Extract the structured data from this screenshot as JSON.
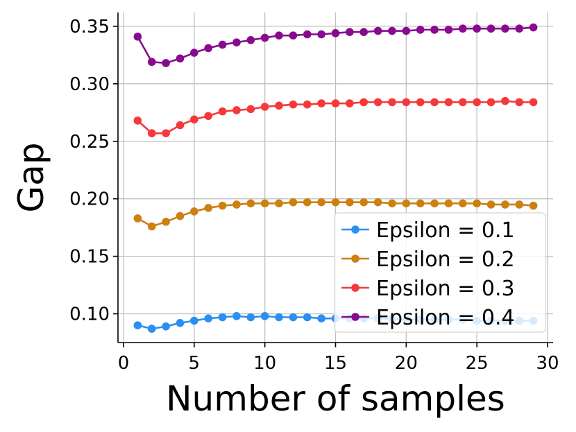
{
  "chart_data": {
    "type": "line",
    "title": "",
    "xlabel": "Number of samples",
    "ylabel": "Gap",
    "xlim": [
      0,
      30
    ],
    "ylim": [
      0.075,
      0.362
    ],
    "xticks": [
      0,
      5,
      10,
      15,
      20,
      25,
      30
    ],
    "yticks": [
      0.1,
      0.15,
      0.2,
      0.25,
      0.3,
      0.35
    ],
    "ytick_labels": [
      "0.10",
      "0.15",
      "0.20",
      "0.25",
      "0.30",
      "0.35"
    ],
    "grid": true,
    "legend_position": "lower-right",
    "x": [
      1,
      2,
      3,
      4,
      5,
      6,
      7,
      8,
      9,
      10,
      11,
      12,
      13,
      14,
      15,
      16,
      17,
      18,
      19,
      20,
      21,
      22,
      23,
      24,
      25,
      26,
      27,
      28,
      29
    ],
    "series": [
      {
        "name": "Epsilon = 0.1",
        "color": "#2a8ff0",
        "values": [
          0.09,
          0.087,
          0.089,
          0.092,
          0.094,
          0.096,
          0.097,
          0.098,
          0.097,
          0.098,
          0.097,
          0.097,
          0.097,
          0.096,
          0.096,
          0.096,
          0.096,
          0.096,
          0.095,
          0.095,
          0.095,
          0.095,
          0.095,
          0.095,
          0.094,
          0.094,
          0.094,
          0.094,
          0.094
        ]
      },
      {
        "name": "Epsilon = 0.2",
        "color": "#cc8010",
        "values": [
          0.183,
          0.176,
          0.18,
          0.185,
          0.189,
          0.192,
          0.194,
          0.195,
          0.196,
          0.196,
          0.196,
          0.197,
          0.197,
          0.197,
          0.197,
          0.197,
          0.197,
          0.197,
          0.196,
          0.196,
          0.196,
          0.196,
          0.196,
          0.196,
          0.196,
          0.195,
          0.195,
          0.195,
          0.194
        ]
      },
      {
        "name": "Epsilon = 0.3",
        "color": "#f5383a",
        "values": [
          0.268,
          0.257,
          0.257,
          0.264,
          0.269,
          0.272,
          0.276,
          0.277,
          0.278,
          0.28,
          0.281,
          0.282,
          0.282,
          0.283,
          0.283,
          0.283,
          0.284,
          0.284,
          0.284,
          0.284,
          0.284,
          0.284,
          0.284,
          0.284,
          0.284,
          0.284,
          0.285,
          0.284,
          0.284
        ]
      },
      {
        "name": "Epsilon = 0.4",
        "color": "#880a8e",
        "values": [
          0.341,
          0.319,
          0.318,
          0.322,
          0.327,
          0.331,
          0.334,
          0.336,
          0.338,
          0.34,
          0.342,
          0.342,
          0.343,
          0.343,
          0.344,
          0.345,
          0.345,
          0.346,
          0.346,
          0.346,
          0.347,
          0.347,
          0.347,
          0.348,
          0.348,
          0.348,
          0.348,
          0.348,
          0.349
        ]
      }
    ]
  }
}
